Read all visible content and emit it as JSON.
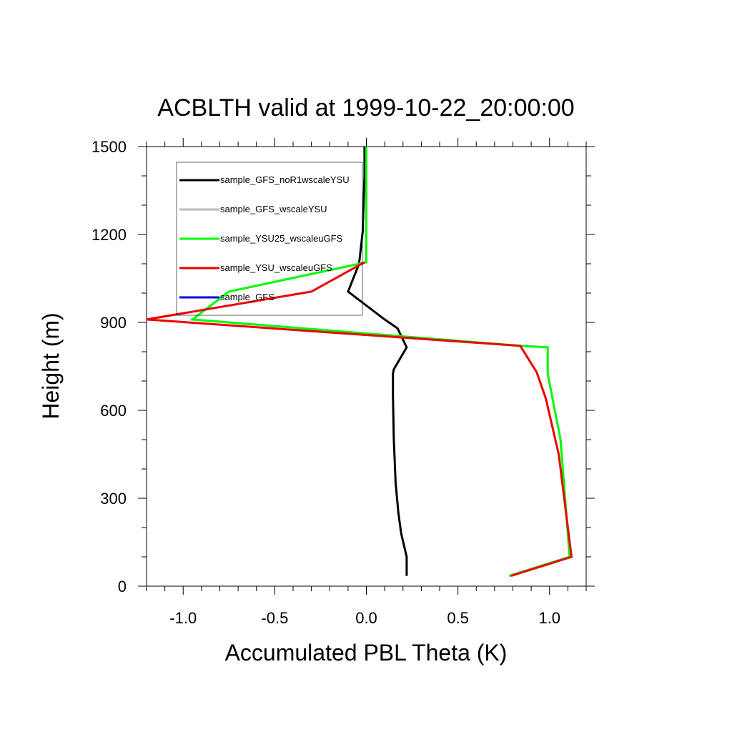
{
  "chart_data": {
    "type": "line",
    "title": "ACBLTH valid at 1999-10-22_20:00:00",
    "xlabel": "Accumulated PBL Theta (K)",
    "ylabel": "Height (m)",
    "xlim": [
      -1.2,
      1.2
    ],
    "ylim": [
      0,
      1500
    ],
    "xticks": [
      -1.0,
      -0.5,
      0.0,
      0.5,
      1.0
    ],
    "xtick_labels": [
      "-1.0",
      "-0.5",
      "0.0",
      "0.5",
      "1.0"
    ],
    "yticks": [
      0,
      300,
      600,
      900,
      1200,
      1500
    ],
    "ytick_labels": [
      "0",
      "300",
      "600",
      "900",
      "1200",
      "1500"
    ],
    "grid": false,
    "legend_position": "top-left",
    "series": [
      {
        "name": "sample_GFS_noR1wscaleYSU",
        "color": "#000000",
        "x": [
          0.22,
          0.22,
          0.19,
          0.175,
          0.16,
          0.15,
          0.145,
          0.145,
          0.15,
          0.22,
          0.17,
          0.1,
          -0.1,
          -0.04,
          -0.02,
          -0.01,
          -0.01
        ],
        "y": [
          35,
          100,
          180,
          250,
          350,
          500,
          650,
          725,
          740,
          815,
          880,
          910,
          1005,
          1100,
          1210,
          1400,
          1500
        ]
      },
      {
        "name": "sample_GFS_wscaleYSU",
        "color": "#bbbbbb",
        "x": [
          0.78,
          1.11,
          1.06,
          0.99,
          0.99,
          0.84,
          -0.95,
          -0.75,
          0.0,
          0.0,
          0.0
        ],
        "y": [
          35,
          100,
          500,
          725,
          815,
          820,
          910,
          1005,
          1105,
          1300,
          1500
        ]
      },
      {
        "name": "sample_YSU25_wscaleuGFS",
        "color": "#00ff00",
        "x": [
          0.78,
          1.11,
          1.06,
          0.99,
          0.99,
          0.84,
          -0.95,
          -0.75,
          0.0,
          0.0,
          0.0
        ],
        "y": [
          35,
          100,
          500,
          725,
          815,
          820,
          910,
          1005,
          1105,
          1300,
          1500
        ]
      },
      {
        "name": "sample_YSU_wscaleuGFS",
        "color": "#ee0000",
        "x": [
          0.79,
          1.12,
          1.05,
          0.98,
          0.93,
          0.84,
          -1.2,
          -0.3,
          -0.01
        ],
        "y": [
          35,
          100,
          450,
          640,
          730,
          820,
          910,
          1005,
          1105
        ]
      },
      {
        "name": "sample_GFS",
        "color": "#0000dd",
        "x": [],
        "y": []
      }
    ]
  }
}
